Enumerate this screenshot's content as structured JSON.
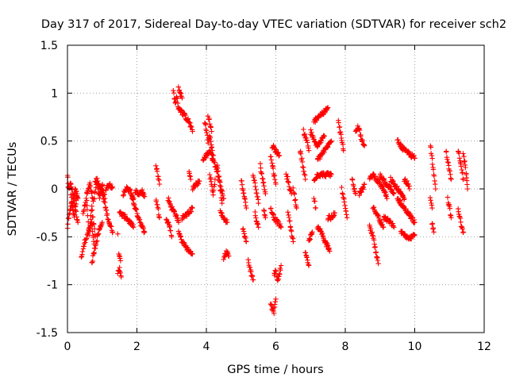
{
  "chart_data": {
    "type": "scatter",
    "title": "Day 317 of 2017, Sidereal Day-to-day VTEC variation (SDTVAR) for receiver sch2",
    "xlabel": "GPS time / hours",
    "ylabel": "SDTVAR / TECUs",
    "xlim": [
      0,
      12
    ],
    "ylim": [
      -1.5,
      1.5
    ],
    "xticks": [
      "0",
      "2",
      "4",
      "6",
      "8",
      "10",
      "12"
    ],
    "yticks": [
      "-1.5",
      "-1",
      "-0.5",
      "0",
      "0.5",
      "1",
      "1.5"
    ],
    "grid": true,
    "marker": "plus",
    "color": "#ff0000",
    "segments": [
      [
        0.0,
        0.15,
        0.02,
        0.0,
        0.1,
        0.05,
        0.2,
        -0.15,
        0.3,
        -0.35
      ],
      [
        0.0,
        -0.4,
        0.05,
        -0.25,
        0.12,
        -0.15,
        0.2,
        -0.3,
        0.28,
        -0.05
      ],
      [
        0.08,
        0.05,
        0.14,
        -0.2,
        0.22,
        0.0,
        0.3,
        -0.1
      ],
      [
        0.4,
        -0.72,
        0.5,
        -0.55,
        0.6,
        -0.45,
        0.7,
        -0.35,
        0.78,
        -0.62
      ],
      [
        0.45,
        -0.25,
        0.55,
        -0.1,
        0.62,
        -0.5,
        0.7,
        -0.2,
        0.8,
        -0.5
      ],
      [
        0.55,
        -0.05,
        0.65,
        0.05,
        0.75,
        -0.15,
        0.85,
        0.1,
        0.92,
        -0.1,
        1.0,
        0.05,
        1.08,
        -0.1
      ],
      [
        0.7,
        -0.78,
        0.8,
        -0.6,
        0.9,
        -0.45,
        1.0,
        -0.35
      ],
      [
        0.8,
        0.1,
        0.9,
        0.05,
        1.0,
        -0.05,
        1.1,
        -0.2,
        1.2,
        -0.35,
        1.3,
        -0.45
      ],
      [
        1.1,
        0.0,
        1.2,
        0.05,
        1.3,
        0.02
      ],
      [
        1.48,
        -0.7,
        1.53,
        -0.75
      ],
      [
        1.45,
        -0.88,
        1.5,
        -0.82,
        1.55,
        -0.92
      ],
      [
        1.45,
        -0.47
      ],
      [
        1.5,
        -0.25,
        1.6,
        -0.28,
        1.7,
        -0.3,
        1.8,
        -0.35,
        1.9,
        -0.4
      ],
      [
        1.6,
        -0.05,
        1.7,
        0.0,
        1.8,
        -0.02,
        1.9,
        -0.1
      ],
      [
        1.85,
        -0.08,
        1.95,
        -0.2,
        2.05,
        -0.3,
        2.15,
        -0.4,
        2.22,
        -0.45
      ],
      [
        1.95,
        -0.02,
        2.05,
        -0.05,
        2.15,
        -0.03,
        2.22,
        -0.08
      ],
      [
        2.55,
        0.25,
        2.6,
        0.15,
        2.65,
        0.05
      ],
      [
        2.55,
        -0.1,
        2.6,
        -0.2,
        2.65,
        -0.3
      ],
      [
        2.85,
        -0.3,
        2.95,
        -0.4,
        3.0,
        -0.5
      ],
      [
        2.9,
        -0.1,
        3.0,
        -0.2,
        3.1,
        -0.25,
        3.2,
        -0.35
      ],
      [
        3.05,
        1.02,
        3.1,
        0.9,
        3.15,
        0.95,
        3.2,
        0.85,
        3.3,
        0.8,
        3.4,
        0.75,
        3.5,
        0.7,
        3.6,
        0.6
      ],
      [
        3.2,
        1.05,
        3.3,
        0.95
      ],
      [
        3.2,
        -0.45,
        3.3,
        -0.55,
        3.4,
        -0.6,
        3.5,
        -0.65,
        3.6,
        -0.68
      ],
      [
        3.3,
        -0.3,
        3.4,
        -0.28,
        3.5,
        -0.25,
        3.6,
        -0.2
      ],
      [
        3.5,
        0.2,
        3.55,
        0.1
      ],
      [
        3.6,
        0.0,
        3.7,
        0.05,
        3.8,
        0.08
      ],
      [
        3.9,
        0.3,
        4.0,
        0.35,
        4.1,
        0.4,
        4.2,
        0.3,
        4.3,
        0.2,
        4.4,
        0.05,
        4.5,
        -0.1
      ],
      [
        3.95,
        0.7,
        4.0,
        0.6,
        4.05,
        0.5,
        4.1,
        0.55,
        4.15,
        0.45,
        4.2,
        0.35
      ],
      [
        4.05,
        0.75,
        4.1,
        0.7,
        4.15,
        0.6
      ],
      [
        4.1,
        0.15,
        4.15,
        0.05,
        4.2,
        -0.05,
        4.25,
        0.1
      ],
      [
        4.3,
        0.25,
        4.35,
        0.15,
        4.4,
        0.0,
        4.45,
        -0.15
      ],
      [
        4.4,
        -0.25,
        4.5,
        -0.3,
        4.6,
        -0.35
      ],
      [
        4.5,
        -0.72,
        4.55,
        -0.68,
        4.6,
        -0.65,
        4.65,
        -0.7
      ],
      [
        5.0,
        0.1,
        5.05,
        0.0,
        5.1,
        -0.1,
        5.15,
        -0.2
      ],
      [
        5.05,
        -0.4,
        5.1,
        -0.5,
        5.15,
        -0.55
      ],
      [
        5.2,
        -0.75,
        5.25,
        -0.82,
        5.3,
        -0.9,
        5.35,
        -0.95
      ],
      [
        5.35,
        0.15,
        5.4,
        0.05,
        5.45,
        -0.05,
        5.5,
        -0.15
      ],
      [
        5.4,
        -0.25,
        5.45,
        -0.35,
        5.5,
        -0.4
      ],
      [
        5.55,
        0.25,
        5.6,
        0.15,
        5.65,
        0.05,
        5.7,
        -0.05
      ],
      [
        5.65,
        -0.2,
        5.7,
        -0.3
      ],
      [
        5.85,
        0.35,
        5.9,
        0.25,
        5.95,
        0.15,
        6.0,
        0.05
      ],
      [
        5.9,
        0.45,
        6.0,
        0.4,
        6.1,
        0.35
      ],
      [
        5.85,
        -0.2,
        5.95,
        -0.3,
        6.05,
        -0.35,
        6.15,
        -0.4
      ],
      [
        5.85,
        -1.2,
        5.9,
        -1.25,
        5.95,
        -1.28,
        6.0,
        -1.15
      ],
      [
        5.95,
        -0.9,
        6.0,
        -0.85,
        6.05,
        -0.95,
        6.1,
        -0.9,
        6.15,
        -0.8
      ],
      [
        6.3,
        0.15,
        6.35,
        0.1,
        6.4,
        0.0,
        6.45,
        -0.05
      ],
      [
        6.35,
        -0.25,
        6.4,
        -0.35,
        6.45,
        -0.45,
        6.5,
        -0.55
      ],
      [
        6.5,
        0.0,
        6.55,
        -0.1,
        6.6,
        -0.2
      ],
      [
        6.7,
        0.4,
        6.75,
        0.3,
        6.8,
        0.2,
        6.85,
        0.1
      ],
      [
        6.8,
        0.6,
        6.85,
        0.55,
        6.9,
        0.5,
        6.95,
        0.4
      ],
      [
        6.85,
        -0.65,
        6.9,
        -0.72,
        6.95,
        -0.8
      ],
      [
        6.95,
        -0.55,
        7.0,
        -0.5,
        7.05,
        -0.45
      ],
      [
        7.0,
        0.6,
        7.1,
        0.5,
        7.2,
        0.45,
        7.3,
        0.5,
        7.4,
        0.55
      ],
      [
        7.1,
        0.7,
        7.2,
        0.75,
        7.3,
        0.78,
        7.4,
        0.8,
        7.5,
        0.85
      ],
      [
        7.2,
        0.3,
        7.3,
        0.35,
        7.4,
        0.4,
        7.5,
        0.45,
        7.6,
        0.5
      ],
      [
        7.1,
        0.1,
        7.2,
        0.15,
        7.3,
        0.15,
        7.4,
        0.15,
        7.5,
        0.15,
        7.6,
        0.15
      ],
      [
        7.1,
        -0.1,
        7.15,
        -0.2
      ],
      [
        7.2,
        -0.4,
        7.3,
        -0.45,
        7.4,
        -0.55,
        7.5,
        -0.6,
        7.55,
        -0.65
      ],
      [
        7.5,
        -0.3,
        7.6,
        -0.3,
        7.7,
        -0.25
      ],
      [
        7.8,
        0.7,
        7.85,
        0.6,
        7.9,
        0.5,
        7.95,
        0.4
      ],
      [
        7.9,
        0.0,
        7.95,
        -0.1,
        8.0,
        -0.2,
        8.05,
        -0.3
      ],
      [
        8.2,
        0.1,
        8.25,
        0.0,
        8.3,
        -0.05
      ],
      [
        8.3,
        0.6,
        8.35,
        0.65,
        8.4,
        0.62,
        8.45,
        0.55,
        8.5,
        0.5,
        8.55,
        0.45
      ],
      [
        8.4,
        -0.05,
        8.5,
        0.0,
        8.55,
        0.05
      ],
      [
        8.7,
        0.1,
        8.8,
        0.15,
        8.9,
        0.1,
        9.0,
        0.05,
        9.1,
        0.0,
        9.2,
        -0.1
      ],
      [
        8.7,
        -0.4,
        8.8,
        -0.5,
        8.85,
        -0.6,
        8.9,
        -0.7,
        8.95,
        -0.78
      ],
      [
        8.8,
        -0.2,
        8.9,
        -0.25,
        9.0,
        -0.35,
        9.1,
        -0.4
      ],
      [
        9.0,
        0.15,
        9.1,
        0.1,
        9.2,
        0.05,
        9.3,
        0.0,
        9.4,
        -0.05
      ],
      [
        9.1,
        -0.3,
        9.2,
        -0.32,
        9.3,
        -0.35,
        9.4,
        -0.4
      ],
      [
        9.3,
        0.1,
        9.4,
        0.05,
        9.5,
        0.0,
        9.6,
        -0.05,
        9.7,
        -0.1
      ],
      [
        9.5,
        -0.1,
        9.6,
        -0.15,
        9.7,
        -0.2,
        9.8,
        -0.25,
        9.9,
        -0.3,
        10.0,
        -0.35
      ],
      [
        9.5,
        0.5,
        9.6,
        0.45,
        9.7,
        0.4,
        9.8,
        0.38,
        9.9,
        0.35,
        10.0,
        0.32
      ],
      [
        9.6,
        -0.45,
        9.7,
        -0.48,
        9.8,
        -0.5,
        9.9,
        -0.5,
        10.0,
        -0.48
      ],
      [
        9.7,
        0.1,
        9.8,
        0.05,
        9.85,
        0.0
      ],
      [
        10.45,
        0.45,
        10.5,
        0.3,
        10.55,
        0.15,
        10.6,
        0.0
      ],
      [
        10.45,
        -0.1,
        10.5,
        -0.2
      ],
      [
        10.5,
        -0.35,
        10.55,
        -0.45
      ],
      [
        10.9,
        0.4,
        10.95,
        0.3,
        11.0,
        0.2,
        11.05,
        0.1
      ],
      [
        10.95,
        -0.1,
        11.0,
        -0.2,
        11.05,
        -0.3
      ],
      [
        11.25,
        0.4,
        11.3,
        0.3,
        11.35,
        0.2,
        11.4,
        0.1
      ],
      [
        11.25,
        -0.2,
        11.3,
        -0.3,
        11.35,
        -0.4,
        11.4,
        -0.45
      ],
      [
        11.4,
        0.35,
        11.45,
        0.25,
        11.5,
        0.1,
        11.52,
        0.0
      ]
    ]
  }
}
